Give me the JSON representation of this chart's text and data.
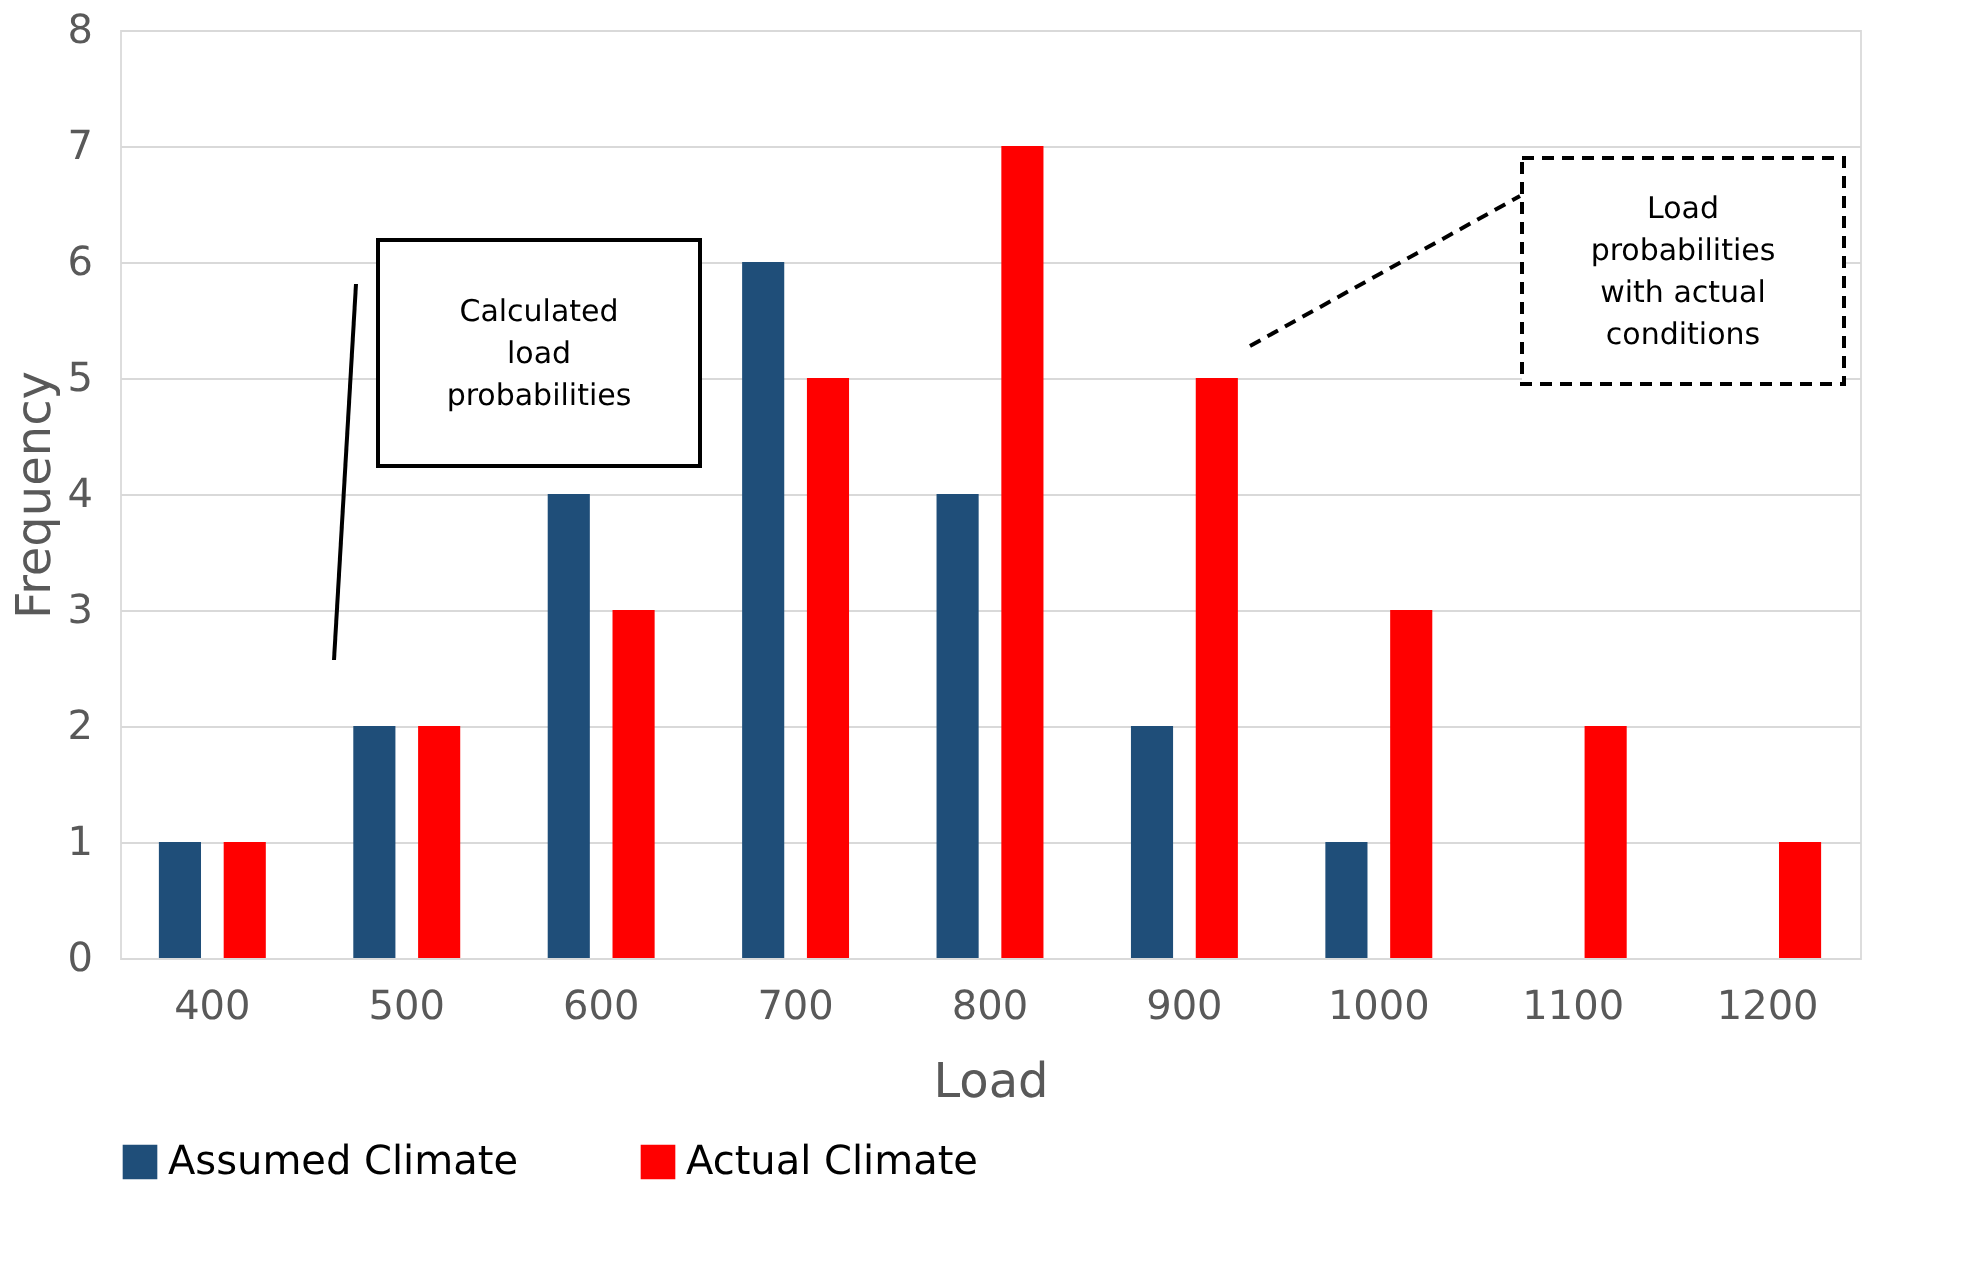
{
  "chart_data": {
    "type": "bar",
    "xlabel": "Load",
    "ylabel": "Frequency",
    "categories": [
      "400",
      "500",
      "600",
      "700",
      "800",
      "900",
      "1000",
      "1100",
      "1200"
    ],
    "series": [
      {
        "name": "Assumed Climate",
        "color": "#1f4e79",
        "values": [
          1,
          2,
          4,
          6,
          4,
          2,
          1,
          0,
          0
        ]
      },
      {
        "name": "Actual Climate",
        "color": "#ff0000",
        "values": [
          1,
          2,
          3,
          5,
          7,
          5,
          3,
          2,
          1
        ]
      }
    ],
    "ylim": [
      0,
      8
    ],
    "yticks": [
      0,
      1,
      2,
      3,
      4,
      5,
      6,
      7,
      8
    ],
    "grid": "y",
    "legend": "bottom",
    "annotations": [
      "Calculated load probabilities",
      "Load probabilities with actual conditions"
    ]
  }
}
